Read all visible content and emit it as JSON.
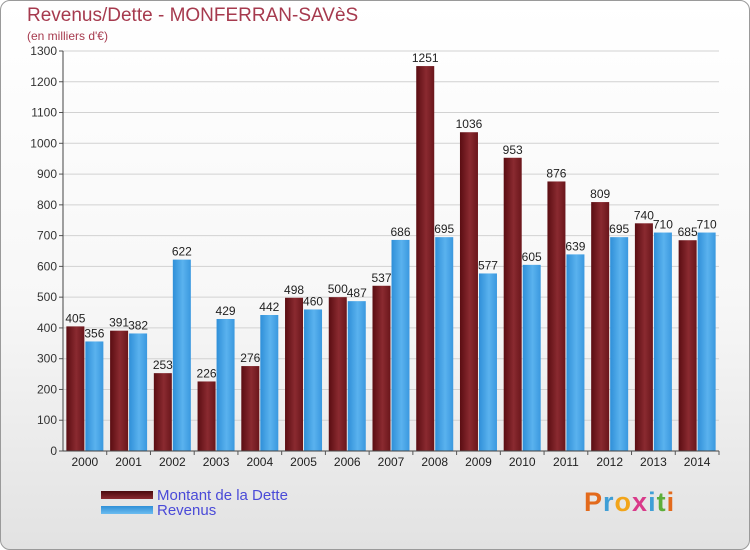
{
  "header": {
    "title": "Revenus/Dette - MONFERRAN-SAVèS",
    "subtitle": "(en milliers d'€)"
  },
  "legend": {
    "items": [
      {
        "label": "Montant de la Dette",
        "color": "#7a1c22"
      },
      {
        "label": "Revenus",
        "color": "#3e9ee2"
      }
    ]
  },
  "brand": {
    "text": "Proxiti",
    "letters": [
      {
        "ch": "P",
        "color": "#e36a1c"
      },
      {
        "ch": "r",
        "color": "#3f9fd6"
      },
      {
        "ch": "o",
        "color": "#f2a51a"
      },
      {
        "ch": "x",
        "color": "#d93a8a"
      },
      {
        "ch": "i",
        "color": "#3f9fd6"
      },
      {
        "ch": "t",
        "color": "#5dae3a"
      },
      {
        "ch": "i",
        "color": "#e36a1c"
      }
    ]
  },
  "chart_data": {
    "type": "bar",
    "title": "Revenus/Dette - MONFERRAN-SAVèS",
    "subtitle": "(en milliers d'€)",
    "xlabel": "",
    "ylabel": "",
    "ylim": [
      0,
      1300
    ],
    "yticks": [
      0,
      100,
      200,
      300,
      400,
      500,
      600,
      700,
      800,
      900,
      1000,
      1100,
      1200,
      1300
    ],
    "grid": true,
    "legend_position": "bottom-left",
    "categories": [
      "2000",
      "2001",
      "2002",
      "2003",
      "2004",
      "2005",
      "2006",
      "2007",
      "2008",
      "2009",
      "2010",
      "2011",
      "2012",
      "2013",
      "2014"
    ],
    "series": [
      {
        "name": "Montant de la Dette",
        "color": "#7a1c22",
        "values": [
          405,
          391,
          253,
          226,
          276,
          498,
          500,
          537,
          1251,
          1036,
          953,
          876,
          809,
          740,
          685
        ]
      },
      {
        "name": "Revenus",
        "color": "#3e9ee2",
        "values": [
          356,
          382,
          622,
          429,
          442,
          460,
          487,
          686,
          695,
          577,
          605,
          639,
          695,
          710,
          710
        ]
      }
    ]
  }
}
